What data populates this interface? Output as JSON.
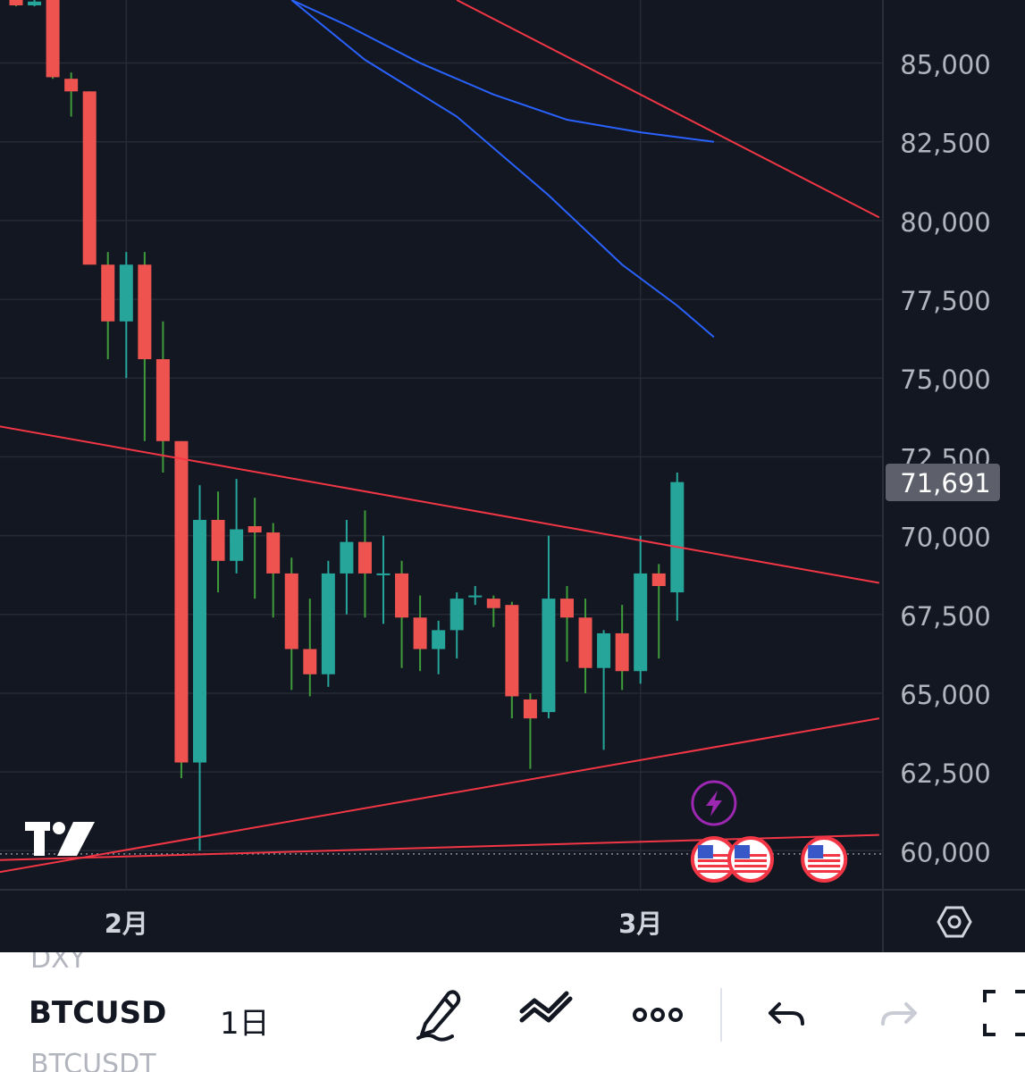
{
  "chart_data": {
    "type": "candlestick",
    "timeframe": "1日",
    "symbol": "BTCUSD",
    "ylim": [
      58550,
      87000
    ],
    "price_ticks": [
      "85,000",
      "82,500",
      "80,000",
      "77,500",
      "75,000",
      "72,500",
      "70,000",
      "67,500",
      "65,000",
      "62,500",
      "60,000"
    ],
    "price_tick_values": [
      85000,
      82500,
      80000,
      77500,
      75000,
      72500,
      70000,
      67500,
      65000,
      62500,
      60000
    ],
    "time_labels": [
      {
        "label": "2月",
        "index": 6
      },
      {
        "label": "3月",
        "index": 34
      }
    ],
    "last_price": 71691,
    "last_price_label": "71,691",
    "up_color": "#26a69a",
    "down_color": "#ef5350",
    "candles": [
      {
        "o": 87000,
        "h": 87000,
        "l": 86800,
        "c": 86830
      },
      {
        "o": 86830,
        "h": 87000,
        "l": 86800,
        "c": 86950
      },
      {
        "o": 87000,
        "h": 87000,
        "l": 84500,
        "c": 84550
      },
      {
        "o": 84500,
        "h": 84700,
        "l": 83300,
        "c": 84100
      },
      {
        "o": 84100,
        "h": 84100,
        "l": 78800,
        "c": 78600
      },
      {
        "o": 78600,
        "h": 79000,
        "l": 75600,
        "c": 76800
      },
      {
        "o": 76800,
        "h": 79000,
        "l": 75000,
        "c": 78600
      },
      {
        "o": 78600,
        "h": 79000,
        "l": 73000,
        "c": 75600
      },
      {
        "o": 75600,
        "h": 76800,
        "l": 72000,
        "c": 73000
      },
      {
        "o": 73000,
        "h": 73000,
        "l": 62300,
        "c": 62800
      },
      {
        "o": 62800,
        "h": 71600,
        "l": 60000,
        "c": 70500
      },
      {
        "o": 70500,
        "h": 71400,
        "l": 68200,
        "c": 69200
      },
      {
        "o": 69200,
        "h": 71800,
        "l": 68800,
        "c": 70200
      },
      {
        "o": 70300,
        "h": 71200,
        "l": 68000,
        "c": 70100
      },
      {
        "o": 70100,
        "h": 70400,
        "l": 67400,
        "c": 68800
      },
      {
        "o": 68800,
        "h": 69300,
        "l": 65100,
        "c": 66400
      },
      {
        "o": 66400,
        "h": 68000,
        "l": 64900,
        "c": 65600
      },
      {
        "o": 65600,
        "h": 69200,
        "l": 65200,
        "c": 68800
      },
      {
        "o": 68800,
        "h": 70500,
        "l": 67500,
        "c": 69800
      },
      {
        "o": 69800,
        "h": 70800,
        "l": 67400,
        "c": 68800
      },
      {
        "o": 68800,
        "h": 70000,
        "l": 67200,
        "c": 68800
      },
      {
        "o": 68800,
        "h": 69200,
        "l": 65800,
        "c": 67400
      },
      {
        "o": 67400,
        "h": 68100,
        "l": 65700,
        "c": 66400
      },
      {
        "o": 66400,
        "h": 67300,
        "l": 65600,
        "c": 67000
      },
      {
        "o": 67000,
        "h": 68200,
        "l": 66100,
        "c": 68000
      },
      {
        "o": 68100,
        "h": 68400,
        "l": 67800,
        "c": 68100
      },
      {
        "o": 68000,
        "h": 68100,
        "l": 67100,
        "c": 67700
      },
      {
        "o": 67800,
        "h": 67900,
        "l": 64200,
        "c": 64900
      },
      {
        "o": 64800,
        "h": 65000,
        "l": 62600,
        "c": 64200
      },
      {
        "o": 64400,
        "h": 70000,
        "l": 64200,
        "c": 68000
      },
      {
        "o": 68000,
        "h": 68400,
        "l": 66000,
        "c": 67400
      },
      {
        "o": 67400,
        "h": 68000,
        "l": 65000,
        "c": 65800
      },
      {
        "o": 65800,
        "h": 67000,
        "l": 63200,
        "c": 66900
      },
      {
        "o": 66900,
        "h": 67800,
        "l": 65100,
        "c": 65700
      },
      {
        "o": 65700,
        "h": 70000,
        "l": 65300,
        "c": 68800
      },
      {
        "o": 68800,
        "h": 69100,
        "l": 66100,
        "c": 68400
      },
      {
        "o": 68200,
        "h": 72000,
        "l": 67300,
        "c": 71700
      }
    ],
    "ma_lines": [
      {
        "color": "#2962ff",
        "points": [
          [
            15,
            87000
          ],
          [
            18,
            86200
          ],
          [
            22,
            85000
          ],
          [
            26,
            84000
          ],
          [
            30,
            83200
          ],
          [
            34,
            82800
          ],
          [
            38,
            82500
          ]
        ]
      },
      {
        "color": "#2962ff",
        "points": [
          [
            15,
            87000
          ],
          [
            19,
            85100
          ],
          [
            24,
            83300
          ],
          [
            29,
            80800
          ],
          [
            33,
            78600
          ],
          [
            36,
            77300
          ],
          [
            38,
            76300
          ]
        ]
      }
    ],
    "trend_lines": [
      {
        "color": "#f23645",
        "from": [
          24,
          87000
        ],
        "to": [
          47,
          80100
        ]
      },
      {
        "color": "#f23645",
        "from": [
          -7,
          74100
        ],
        "to": [
          47,
          68500
        ]
      },
      {
        "color": "#f23645",
        "from": [
          -7,
          58700
        ],
        "to": [
          47,
          64200
        ]
      },
      {
        "color": "#f23645",
        "from": [
          -7,
          59600
        ],
        "to": [
          47,
          60500
        ]
      }
    ],
    "dotted_level": 59900,
    "events": [
      {
        "icon": "lightning-icon",
        "index": 38,
        "row": "upper"
      },
      {
        "icon": "us-flag-icon",
        "index": 38,
        "row": "lower"
      },
      {
        "icon": "us-flag-icon",
        "index": 40,
        "row": "lower"
      },
      {
        "icon": "us-flag-icon",
        "index": 44,
        "row": "lower"
      }
    ]
  },
  "watermark": "TV",
  "toolbar": {
    "symbol": "BTCUSD",
    "interval": "1日",
    "prev_symbol": "DXY",
    "next_symbol": "BTCUSDT",
    "icons": [
      "pencil-icon",
      "trend-tool-icon",
      "more-icon",
      "undo-icon",
      "redo-icon",
      "fullscreen-icon"
    ]
  }
}
